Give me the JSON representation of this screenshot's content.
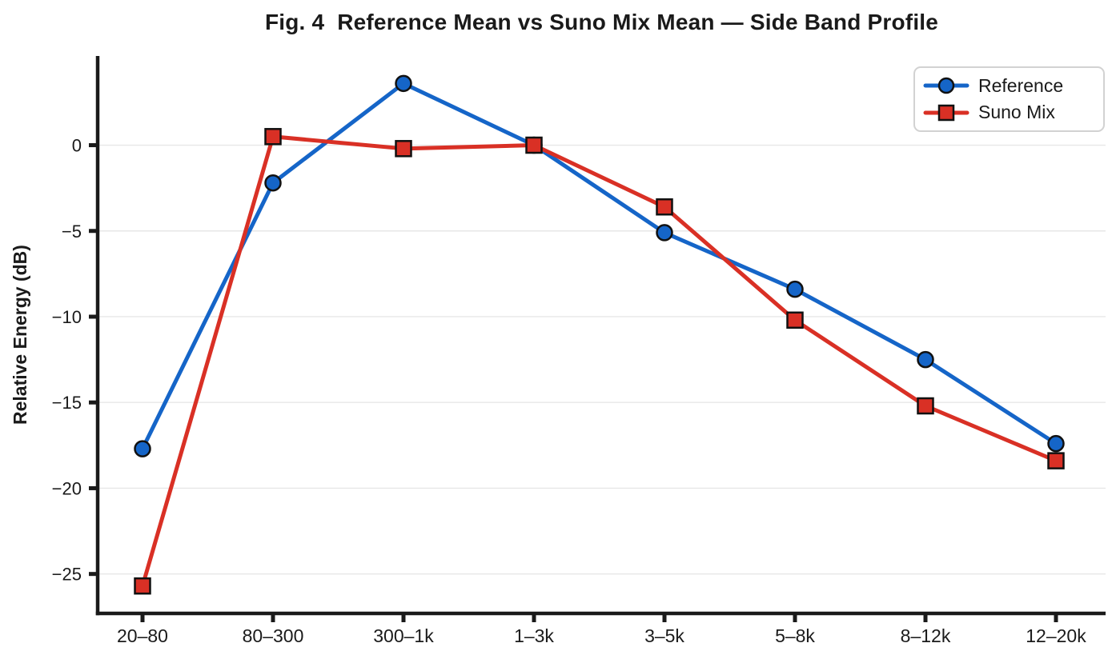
{
  "chart_data": {
    "type": "line",
    "title": "Fig. 4  Reference Mean vs Suno Mix Mean — Side Band Profile",
    "xlabel": "",
    "ylabel": "Relative Energy (dB)",
    "categories": [
      "20–80",
      "80–300",
      "300–1k",
      "1–3k",
      "3–5k",
      "5–8k",
      "8–12k",
      "12–20k"
    ],
    "series": [
      {
        "name": "Reference",
        "marker": "circle",
        "color": "#1565c8",
        "values": [
          -17.7,
          -2.2,
          3.6,
          0.0,
          -5.1,
          -8.4,
          -12.5,
          -17.4
        ]
      },
      {
        "name": "Suno Mix",
        "marker": "square",
        "color": "#d93025",
        "values": [
          -25.7,
          0.5,
          -0.2,
          0.0,
          -3.6,
          -10.2,
          -15.2,
          -18.4
        ]
      }
    ],
    "yticks": [
      0,
      -5,
      -10,
      -15,
      -20,
      -25
    ],
    "ylim": [
      -27.3,
      5.2
    ],
    "grid": "horizontal",
    "legend_position": "top-right",
    "grid_color": "#e7e7e7",
    "axis_color": "#1a1a1a",
    "text_color": "#1a1a1a",
    "marker_edge_color": "#111111"
  }
}
